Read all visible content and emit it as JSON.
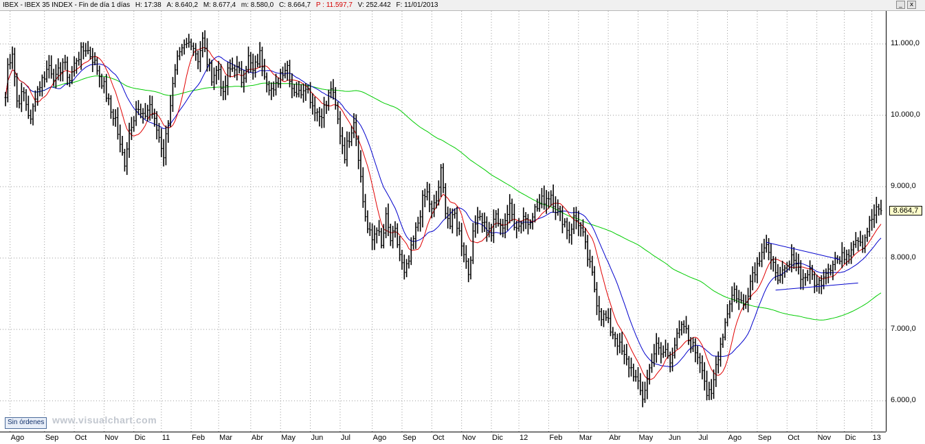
{
  "titlebar": {
    "instrument": "IBEX - IBEX 35 INDEX - Fin de día 1 días",
    "hour": "H: 17:38",
    "open": "A: 8.640,2",
    "high": "M: 8.677,4",
    "low": "m: 8.580,0",
    "close": "C: 8.664,7",
    "prev": "P : 11.597,7",
    "volume": "V: 252.442",
    "date": "F: 11/01/2013"
  },
  "window_buttons": {
    "minimize": "_",
    "close": "x"
  },
  "orders_button": "Sin órdenes",
  "brand": "www.visualchart.com",
  "last_value_label": "8.664,7",
  "colors": {
    "price": "#000000",
    "ma_short": "#e00000",
    "ma_mid": "#0000cc",
    "ma_long": "#00cc00",
    "trendline": "#0000cc",
    "grid": "#9a9a9a"
  },
  "chart_data": {
    "type": "line",
    "title": "IBEX - IBEX 35 INDEX",
    "yticks": [
      {
        "label": "11.000,0",
        "value": 11000
      },
      {
        "label": "10.000,0",
        "value": 10000
      },
      {
        "label": "9.000,0",
        "value": 9000
      },
      {
        "label": "8.000,0",
        "value": 8000
      },
      {
        "label": "7.000,0",
        "value": 7000
      },
      {
        "label": "6.000,0",
        "value": 6000
      }
    ],
    "ylim": [
      5650,
      11500
    ],
    "xrange_bars": [
      0,
      382
    ],
    "xticks": [
      {
        "label": "Ago",
        "bar": 2
      },
      {
        "label": "Sep",
        "bar": 17
      },
      {
        "label": "Oct",
        "bar": 30
      },
      {
        "label": "Nov",
        "bar": 43
      },
      {
        "label": "Dic",
        "bar": 56
      },
      {
        "label": "11",
        "bar": 68
      },
      {
        "label": "Feb",
        "bar": 81
      },
      {
        "label": "Mar",
        "bar": 93
      },
      {
        "label": "Abr",
        "bar": 107
      },
      {
        "label": "May",
        "bar": 120
      },
      {
        "label": "Jun",
        "bar": 133
      },
      {
        "label": "Jul",
        "bar": 146
      },
      {
        "label": "Ago",
        "bar": 160
      },
      {
        "label": "Sep",
        "bar": 173
      },
      {
        "label": "Oct",
        "bar": 186
      },
      {
        "label": "Nov",
        "bar": 199
      },
      {
        "label": "Dic",
        "bar": 212
      },
      {
        "label": "12",
        "bar": 224
      },
      {
        "label": "Feb",
        "bar": 237
      },
      {
        "label": "Mar",
        "bar": 250
      },
      {
        "label": "Abr",
        "bar": 263
      },
      {
        "label": "May",
        "bar": 276
      },
      {
        "label": "Jun",
        "bar": 289
      },
      {
        "label": "Jul",
        "bar": 302
      },
      {
        "label": "Ago",
        "bar": 315
      },
      {
        "label": "Sep",
        "bar": 328
      },
      {
        "label": "Oct",
        "bar": 341
      },
      {
        "label": "Nov",
        "bar": 354
      },
      {
        "label": "Dic",
        "bar": 366
      },
      {
        "label": "13",
        "bar": 378
      }
    ],
    "price_anchors": [
      [
        0,
        10250
      ],
      [
        1,
        10700
      ],
      [
        3,
        10900
      ],
      [
        5,
        10200
      ],
      [
        8,
        10300
      ],
      [
        11,
        9900
      ],
      [
        13,
        10300
      ],
      [
        16,
        10500
      ],
      [
        19,
        10700
      ],
      [
        22,
        10500
      ],
      [
        25,
        10750
      ],
      [
        28,
        10500
      ],
      [
        31,
        10800
      ],
      [
        35,
        10950
      ],
      [
        38,
        10800
      ],
      [
        40,
        10650
      ],
      [
        43,
        10400
      ],
      [
        46,
        10050
      ],
      [
        48,
        9950
      ],
      [
        50,
        9550
      ],
      [
        52,
        9350
      ],
      [
        54,
        9800
      ],
      [
        57,
        10100
      ],
      [
        60,
        9950
      ],
      [
        63,
        10150
      ],
      [
        65,
        9900
      ],
      [
        67,
        9700
      ],
      [
        69,
        9450
      ],
      [
        71,
        9950
      ],
      [
        73,
        10400
      ],
      [
        75,
        10750
      ],
      [
        78,
        10950
      ],
      [
        81,
        11050
      ],
      [
        84,
        10800
      ],
      [
        86,
        11050
      ],
      [
        88,
        10750
      ],
      [
        90,
        10550
      ],
      [
        93,
        10650
      ],
      [
        95,
        10250
      ],
      [
        97,
        10600
      ],
      [
        100,
        10700
      ],
      [
        103,
        10500
      ],
      [
        106,
        10800
      ],
      [
        108,
        10600
      ],
      [
        111,
        10850
      ],
      [
        114,
        10500
      ],
      [
        117,
        10300
      ],
      [
        120,
        10600
      ],
      [
        123,
        10700
      ],
      [
        125,
        10400
      ],
      [
        128,
        10300
      ],
      [
        131,
        10450
      ],
      [
        134,
        10150
      ],
      [
        137,
        10000
      ],
      [
        140,
        10150
      ],
      [
        142,
        10400
      ],
      [
        144,
        10100
      ],
      [
        146,
        9750
      ],
      [
        148,
        9450
      ],
      [
        150,
        9700
      ],
      [
        152,
        9950
      ],
      [
        154,
        9450
      ],
      [
        156,
        8800
      ],
      [
        158,
        8400
      ],
      [
        160,
        8250
      ],
      [
        162,
        8450
      ],
      [
        164,
        8150
      ],
      [
        166,
        8550
      ],
      [
        168,
        8250
      ],
      [
        170,
        8350
      ],
      [
        172,
        8050
      ],
      [
        174,
        7750
      ],
      [
        176,
        7950
      ],
      [
        178,
        8250
      ],
      [
        180,
        8500
      ],
      [
        182,
        8800
      ],
      [
        184,
        8900
      ],
      [
        186,
        8650
      ],
      [
        188,
        8800
      ],
      [
        190,
        9200
      ],
      [
        192,
        8700
      ],
      [
        194,
        8450
      ],
      [
        196,
        8600
      ],
      [
        198,
        8350
      ],
      [
        200,
        8100
      ],
      [
        202,
        7800
      ],
      [
        204,
        8300
      ],
      [
        206,
        8650
      ],
      [
        208,
        8550
      ],
      [
        210,
        8400
      ],
      [
        212,
        8350
      ],
      [
        214,
        8600
      ],
      [
        216,
        8400
      ],
      [
        218,
        8550
      ],
      [
        220,
        8700
      ],
      [
        222,
        8500
      ],
      [
        224,
        8450
      ],
      [
        226,
        8600
      ],
      [
        228,
        8500
      ],
      [
        230,
        8650
      ],
      [
        232,
        8700
      ],
      [
        234,
        8800
      ],
      [
        236,
        8850
      ],
      [
        238,
        8900
      ],
      [
        240,
        8700
      ],
      [
        242,
        8600
      ],
      [
        244,
        8500
      ],
      [
        246,
        8350
      ],
      [
        248,
        8550
      ],
      [
        250,
        8500
      ],
      [
        252,
        8300
      ],
      [
        254,
        8000
      ],
      [
        256,
        7750
      ],
      [
        258,
        7400
      ],
      [
        260,
        7200
      ],
      [
        262,
        7150
      ],
      [
        264,
        7000
      ],
      [
        266,
        6900
      ],
      [
        268,
        6750
      ],
      [
        270,
        6600
      ],
      [
        272,
        6500
      ],
      [
        274,
        6400
      ],
      [
        276,
        6200
      ],
      [
        278,
        6050
      ],
      [
        280,
        6300
      ],
      [
        282,
        6600
      ],
      [
        284,
        6750
      ],
      [
        286,
        6650
      ],
      [
        288,
        6700
      ],
      [
        290,
        6600
      ],
      [
        292,
        6800
      ],
      [
        294,
        6950
      ],
      [
        296,
        7050
      ],
      [
        298,
        6850
      ],
      [
        300,
        6750
      ],
      [
        302,
        6650
      ],
      [
        304,
        6500
      ],
      [
        306,
        6100
      ],
      [
        308,
        6050
      ],
      [
        310,
        6500
      ],
      [
        312,
        6800
      ],
      [
        314,
        7100
      ],
      [
        316,
        7400
      ],
      [
        318,
        7550
      ],
      [
        320,
        7400
      ],
      [
        322,
        7350
      ],
      [
        324,
        7550
      ],
      [
        326,
        7800
      ],
      [
        328,
        7900
      ],
      [
        330,
        8150
      ],
      [
        332,
        8200
      ],
      [
        334,
        7900
      ],
      [
        336,
        7850
      ],
      [
        338,
        7700
      ],
      [
        340,
        7800
      ],
      [
        342,
        7900
      ],
      [
        344,
        8050
      ],
      [
        346,
        7850
      ],
      [
        348,
        7700
      ],
      [
        350,
        7800
      ],
      [
        352,
        7750
      ],
      [
        354,
        7600
      ],
      [
        356,
        7700
      ],
      [
        358,
        7850
      ],
      [
        360,
        7900
      ],
      [
        362,
        8000
      ],
      [
        364,
        7950
      ],
      [
        366,
        8050
      ],
      [
        368,
        8100
      ],
      [
        370,
        8250
      ],
      [
        372,
        8300
      ],
      [
        374,
        8200
      ],
      [
        376,
        8400
      ],
      [
        378,
        8550
      ],
      [
        380,
        8650
      ],
      [
        382,
        8664.7
      ]
    ],
    "trendlines": [
      {
        "from": [
          332,
          8220
        ],
        "to": [
          364,
          7980
        ]
      },
      {
        "from": [
          336,
          7550
        ],
        "to": [
          372,
          7650
        ]
      }
    ],
    "moving_averages": [
      {
        "color": "red",
        "period": 10
      },
      {
        "color": "blue",
        "period": 20
      },
      {
        "color": "green",
        "period": 100
      }
    ],
    "last_value": 8664.7
  }
}
